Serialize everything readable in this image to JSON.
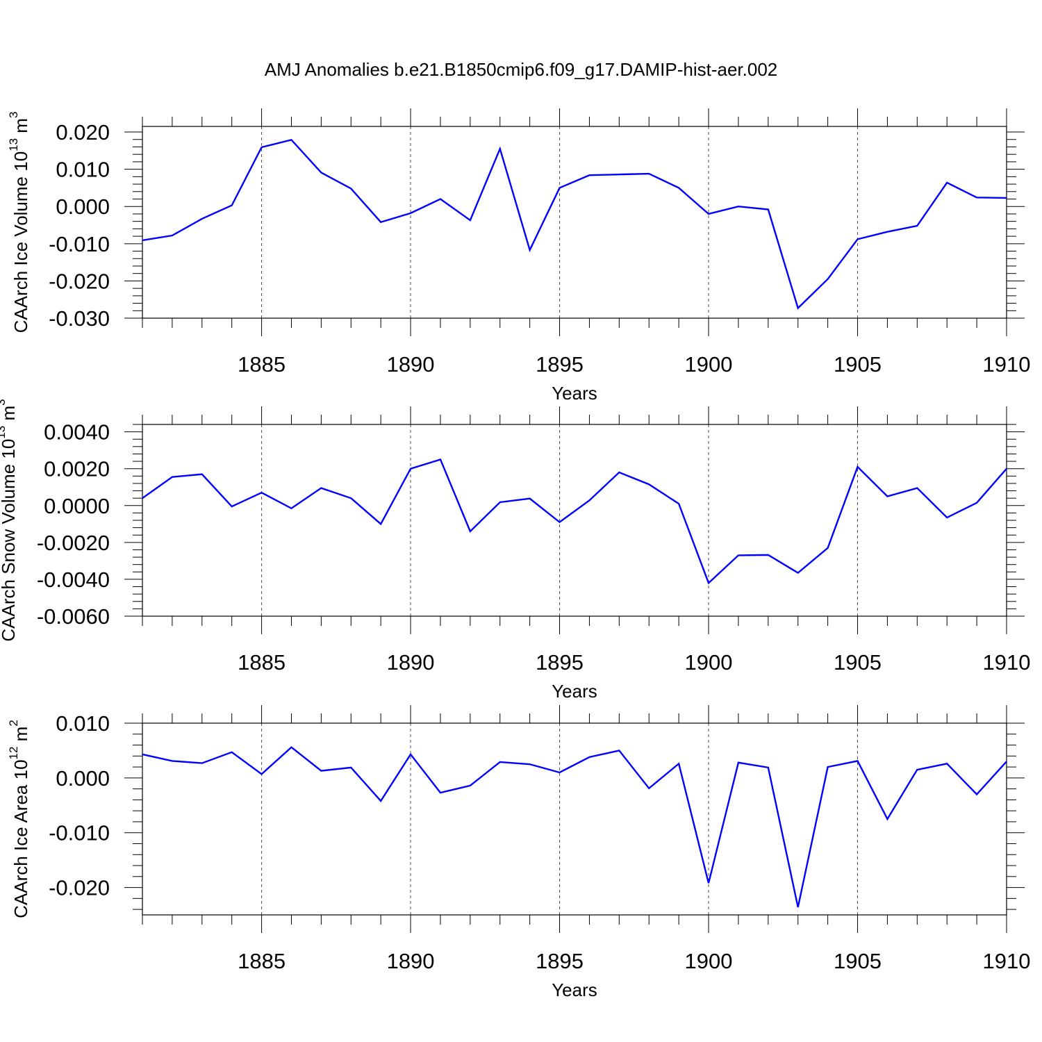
{
  "title": "AMJ Anomalies b.e21.B1850cmip6.f09_g17.DAMIP-hist-aer.002",
  "colors": {
    "line": "#0000ff",
    "axis": "#000000",
    "grid": "#000000"
  },
  "chart_data": [
    {
      "type": "line",
      "ylabel_main": "CAArch Ice Volume 10",
      "ylabel_exp": "13",
      "ylabel_unit": " m",
      "ylabel_unit_exp": "3",
      "xlabel": "Years",
      "xlim": [
        1881,
        1910
      ],
      "ylim": [
        -0.03,
        0.0215
      ],
      "y_ticks": [
        -0.03,
        -0.02,
        -0.01,
        0.0,
        0.01,
        0.02
      ],
      "y_tick_labels": [
        "-0.030",
        "-0.020",
        "-0.010",
        "0.000",
        "0.010",
        "0.020"
      ],
      "x_ticks": [
        1885,
        1890,
        1895,
        1900,
        1905,
        1910
      ],
      "x_tick_labels": [
        "1885",
        "1890",
        "1895",
        "1900",
        "1905",
        "1910"
      ],
      "vertical_grid": true,
      "x": [
        1881,
        1882,
        1883,
        1884,
        1885,
        1886,
        1887,
        1888,
        1889,
        1890,
        1891,
        1892,
        1893,
        1894,
        1895,
        1896,
        1897,
        1898,
        1899,
        1900,
        1901,
        1902,
        1903,
        1904,
        1905,
        1906,
        1907,
        1908,
        1909,
        1910
      ],
      "series": [
        {
          "values": [
            -0.0091,
            -0.0078,
            -0.0033,
            0.0003,
            0.0159,
            0.0179,
            0.0091,
            0.0048,
            -0.0042,
            -0.0018,
            0.002,
            -0.0037,
            0.0155,
            -0.0117,
            0.005,
            0.0084,
            0.0086,
            0.0088,
            0.005,
            -0.002,
            0.0,
            -0.0008,
            -0.0273,
            -0.0195,
            -0.0088,
            -0.0068,
            -0.0052,
            0.0064,
            0.0024,
            0.0023
          ]
        }
      ]
    },
    {
      "type": "line",
      "ylabel_main": "CAArch Snow Volume 10",
      "ylabel_exp": "13",
      "ylabel_unit": " m",
      "ylabel_unit_exp": "3",
      "xlabel": "Years",
      "xlim": [
        1881,
        1910
      ],
      "ylim": [
        -0.006,
        0.0044
      ],
      "y_ticks": [
        -0.006,
        -0.004,
        -0.002,
        0.0,
        0.002,
        0.004
      ],
      "y_tick_labels": [
        "-0.0060",
        "-0.0040",
        "-0.0020",
        "0.0000",
        "0.0020",
        "0.0040"
      ],
      "x_ticks": [
        1885,
        1890,
        1895,
        1900,
        1905,
        1910
      ],
      "x_tick_labels": [
        "1885",
        "1890",
        "1895",
        "1900",
        "1905",
        "1910"
      ],
      "vertical_grid": true,
      "x": [
        1881,
        1882,
        1883,
        1884,
        1885,
        1886,
        1887,
        1888,
        1889,
        1890,
        1891,
        1892,
        1893,
        1894,
        1895,
        1896,
        1897,
        1898,
        1899,
        1900,
        1901,
        1902,
        1903,
        1904,
        1905,
        1906,
        1907,
        1908,
        1909,
        1910
      ],
      "series": [
        {
          "values": [
            0.0004,
            0.00155,
            0.0017,
            -5e-05,
            0.0007,
            -0.00015,
            0.00095,
            0.0004,
            -0.001,
            0.002,
            0.0025,
            -0.0014,
            0.00018,
            0.00038,
            -0.0009,
            0.00028,
            0.0018,
            0.00115,
            0.0001,
            -0.0042,
            -0.0027,
            -0.00268,
            -0.00365,
            -0.0023,
            0.0021,
            0.0005,
            0.00095,
            -0.00065,
            0.00015,
            0.002
          ]
        }
      ]
    },
    {
      "type": "line",
      "ylabel_main": "CAArch Ice Area 10",
      "ylabel_exp": "12",
      "ylabel_unit": " m",
      "ylabel_unit_exp": "2",
      "xlabel": "Years",
      "xlim": [
        1881,
        1910
      ],
      "ylim": [
        -0.025,
        0.01
      ],
      "y_ticks": [
        -0.02,
        -0.01,
        0.0,
        0.01
      ],
      "y_tick_labels": [
        "-0.020",
        "-0.010",
        "0.000",
        "0.010"
      ],
      "x_ticks": [
        1885,
        1890,
        1895,
        1900,
        1905,
        1910
      ],
      "x_tick_labels": [
        "1885",
        "1890",
        "1895",
        "1900",
        "1905",
        "1910"
      ],
      "vertical_grid": true,
      "x": [
        1881,
        1882,
        1883,
        1884,
        1885,
        1886,
        1887,
        1888,
        1889,
        1890,
        1891,
        1892,
        1893,
        1894,
        1895,
        1896,
        1897,
        1898,
        1899,
        1900,
        1901,
        1902,
        1903,
        1904,
        1905,
        1906,
        1907,
        1908,
        1909,
        1910
      ],
      "series": [
        {
          "values": [
            0.0043,
            0.0031,
            0.0027,
            0.0047,
            0.0007,
            0.0056,
            0.0013,
            0.0019,
            -0.0042,
            0.0043,
            -0.0027,
            -0.0014,
            0.0029,
            0.0025,
            0.001,
            0.0038,
            0.005,
            -0.0019,
            0.0026,
            -0.0192,
            0.0028,
            0.0019,
            -0.0236,
            0.002,
            0.0031,
            -0.0075,
            0.0015,
            0.0026,
            -0.003,
            0.003
          ]
        }
      ]
    }
  ]
}
